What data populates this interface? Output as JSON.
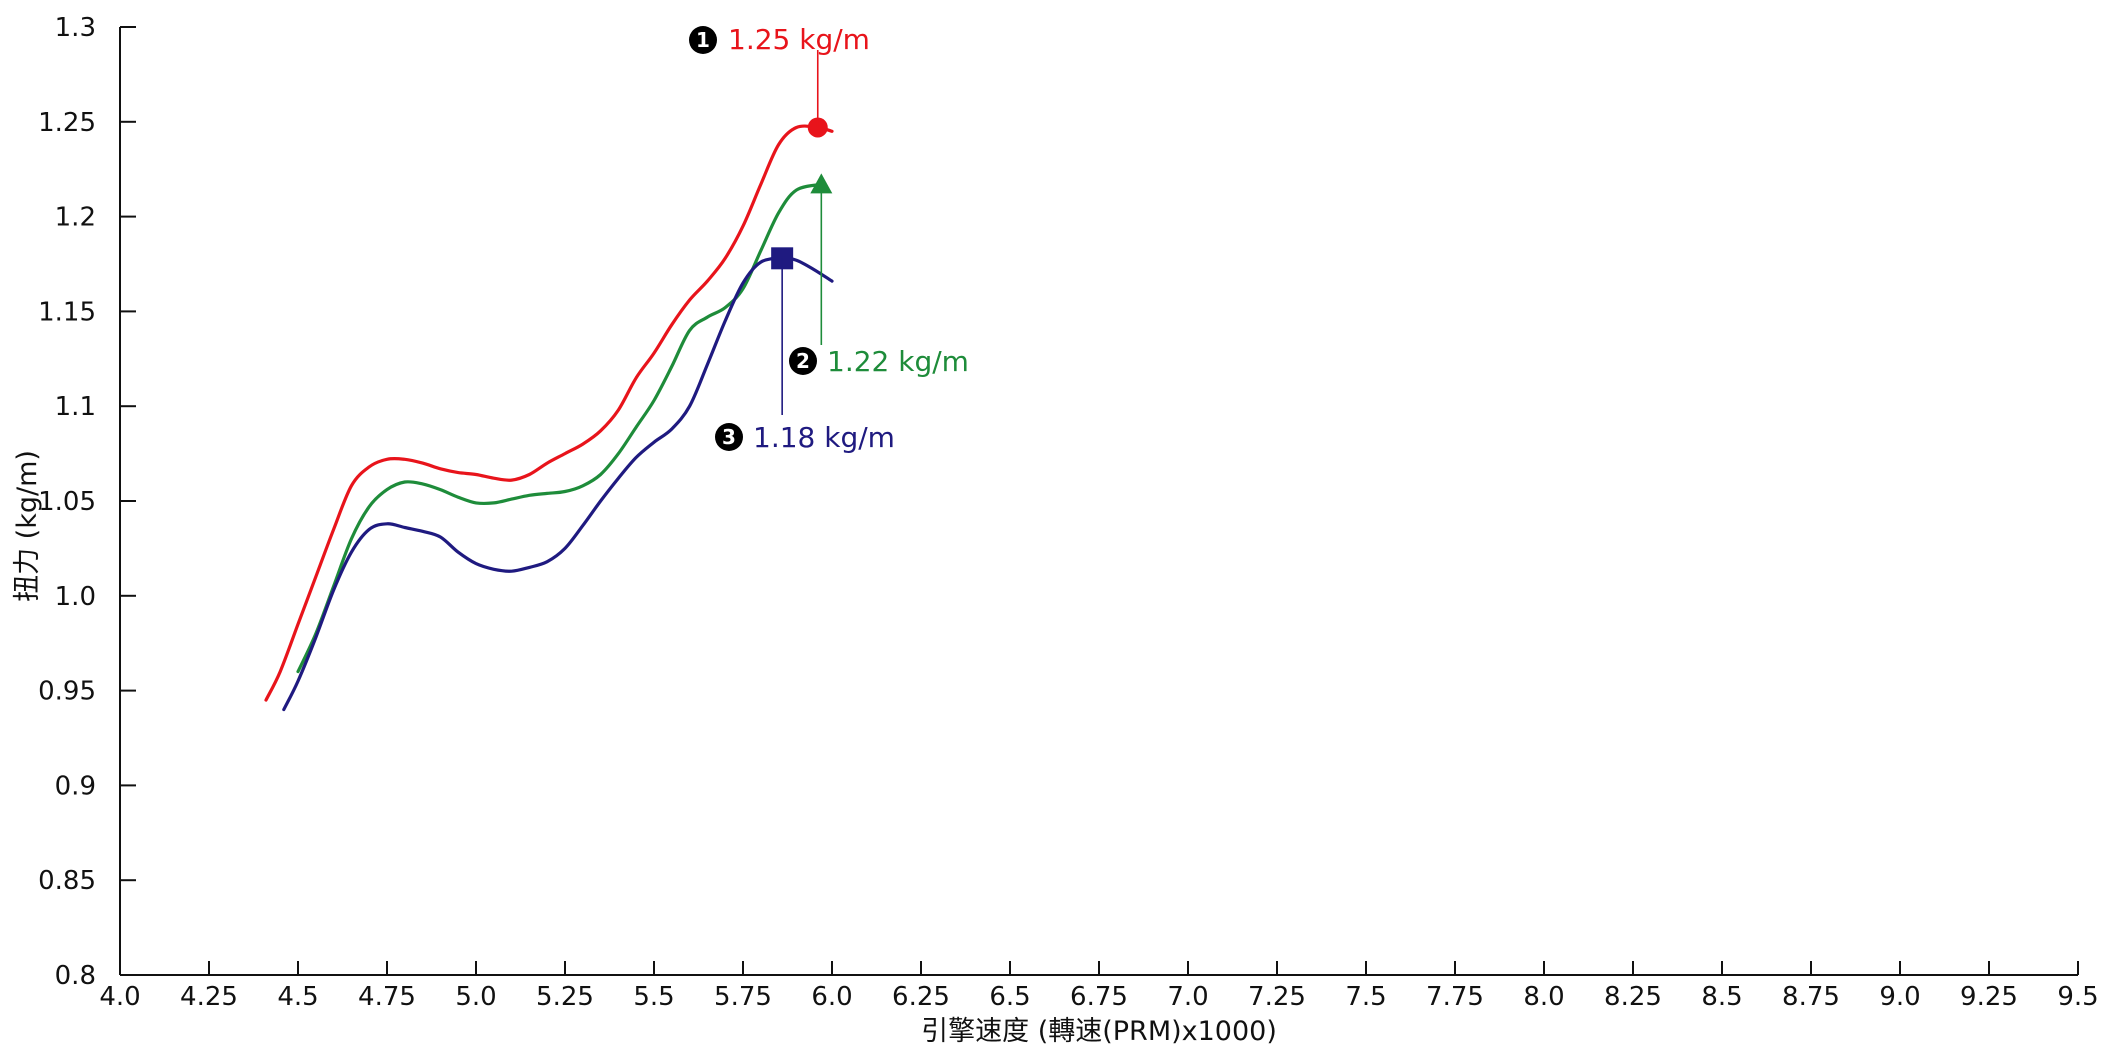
{
  "chart_data": {
    "type": "line",
    "title": "",
    "xlabel": "引擎速度 (轉速(PRM)x1000)",
    "ylabel": "扭力 (kg/m)",
    "xlim": [
      4.0,
      9.5
    ],
    "ylim": [
      0.8,
      1.3
    ],
    "grid": false,
    "x_ticks": [
      "4.0",
      "4.25",
      "4.5",
      "4.75",
      "5.0",
      "5.25",
      "5.5",
      "5.75",
      "6.0",
      "6.25",
      "6.5",
      "6.75",
      "7.0",
      "7.25",
      "7.5",
      "7.75",
      "8.0",
      "8.25",
      "8.5",
      "8.75",
      "9.0",
      "9.25",
      "9.5"
    ],
    "y_ticks": [
      "0.8",
      "0.85",
      "0.9",
      "0.95",
      "1.0",
      "1.05",
      "1.1",
      "1.15",
      "1.2",
      "1.25",
      "1.3"
    ],
    "series": [
      {
        "color": "#e8141b",
        "marker": "circle",
        "peak": {
          "x": 5.96,
          "y": 1.247
        },
        "annotation": {
          "badge": "1",
          "label": "1.25 kg/m"
        },
        "points": [
          [
            4.41,
            0.945
          ],
          [
            4.45,
            0.96
          ],
          [
            4.5,
            0.985
          ],
          [
            4.55,
            1.01
          ],
          [
            4.6,
            1.035
          ],
          [
            4.65,
            1.058
          ],
          [
            4.7,
            1.068
          ],
          [
            4.75,
            1.072
          ],
          [
            4.8,
            1.072
          ],
          [
            4.85,
            1.07
          ],
          [
            4.9,
            1.067
          ],
          [
            4.95,
            1.065
          ],
          [
            5.0,
            1.064
          ],
          [
            5.05,
            1.062
          ],
          [
            5.1,
            1.061
          ],
          [
            5.15,
            1.064
          ],
          [
            5.2,
            1.07
          ],
          [
            5.25,
            1.075
          ],
          [
            5.3,
            1.08
          ],
          [
            5.35,
            1.087
          ],
          [
            5.4,
            1.098
          ],
          [
            5.45,
            1.115
          ],
          [
            5.5,
            1.128
          ],
          [
            5.55,
            1.143
          ],
          [
            5.6,
            1.156
          ],
          [
            5.65,
            1.166
          ],
          [
            5.7,
            1.178
          ],
          [
            5.75,
            1.195
          ],
          [
            5.8,
            1.217
          ],
          [
            5.85,
            1.238
          ],
          [
            5.9,
            1.247
          ],
          [
            5.96,
            1.247
          ],
          [
            6.0,
            1.245
          ]
        ]
      },
      {
        "color": "#1e8c3a",
        "marker": "triangle",
        "peak": {
          "x": 5.97,
          "y": 1.217
        },
        "annotation": {
          "badge": "2",
          "label": "1.22 kg/m"
        },
        "points": [
          [
            4.5,
            0.96
          ],
          [
            4.55,
            0.98
          ],
          [
            4.6,
            1.005
          ],
          [
            4.65,
            1.03
          ],
          [
            4.7,
            1.047
          ],
          [
            4.75,
            1.056
          ],
          [
            4.8,
            1.06
          ],
          [
            4.85,
            1.059
          ],
          [
            4.9,
            1.056
          ],
          [
            4.95,
            1.052
          ],
          [
            5.0,
            1.049
          ],
          [
            5.05,
            1.049
          ],
          [
            5.1,
            1.051
          ],
          [
            5.15,
            1.053
          ],
          [
            5.2,
            1.054
          ],
          [
            5.25,
            1.055
          ],
          [
            5.3,
            1.058
          ],
          [
            5.35,
            1.064
          ],
          [
            5.4,
            1.075
          ],
          [
            5.45,
            1.089
          ],
          [
            5.5,
            1.103
          ],
          [
            5.55,
            1.121
          ],
          [
            5.6,
            1.14
          ],
          [
            5.65,
            1.147
          ],
          [
            5.7,
            1.152
          ],
          [
            5.75,
            1.162
          ],
          [
            5.8,
            1.182
          ],
          [
            5.85,
            1.202
          ],
          [
            5.9,
            1.214
          ],
          [
            5.97,
            1.217
          ]
        ]
      },
      {
        "color": "#1f1a80",
        "marker": "square",
        "peak": {
          "x": 5.86,
          "y": 1.178
        },
        "annotation": {
          "badge": "3",
          "label": "1.18 kg/m"
        },
        "points": [
          [
            4.46,
            0.94
          ],
          [
            4.5,
            0.955
          ],
          [
            4.55,
            0.978
          ],
          [
            4.6,
            1.003
          ],
          [
            4.65,
            1.023
          ],
          [
            4.7,
            1.035
          ],
          [
            4.75,
            1.038
          ],
          [
            4.8,
            1.036
          ],
          [
            4.85,
            1.034
          ],
          [
            4.9,
            1.031
          ],
          [
            4.95,
            1.023
          ],
          [
            5.0,
            1.017
          ],
          [
            5.05,
            1.014
          ],
          [
            5.1,
            1.013
          ],
          [
            5.15,
            1.015
          ],
          [
            5.2,
            1.018
          ],
          [
            5.25,
            1.025
          ],
          [
            5.3,
            1.037
          ],
          [
            5.35,
            1.05
          ],
          [
            5.4,
            1.062
          ],
          [
            5.45,
            1.073
          ],
          [
            5.5,
            1.081
          ],
          [
            5.55,
            1.088
          ],
          [
            5.6,
            1.1
          ],
          [
            5.65,
            1.122
          ],
          [
            5.7,
            1.145
          ],
          [
            5.75,
            1.165
          ],
          [
            5.8,
            1.176
          ],
          [
            5.86,
            1.178
          ],
          [
            5.9,
            1.177
          ],
          [
            5.95,
            1.172
          ],
          [
            6.0,
            1.166
          ]
        ]
      }
    ]
  }
}
